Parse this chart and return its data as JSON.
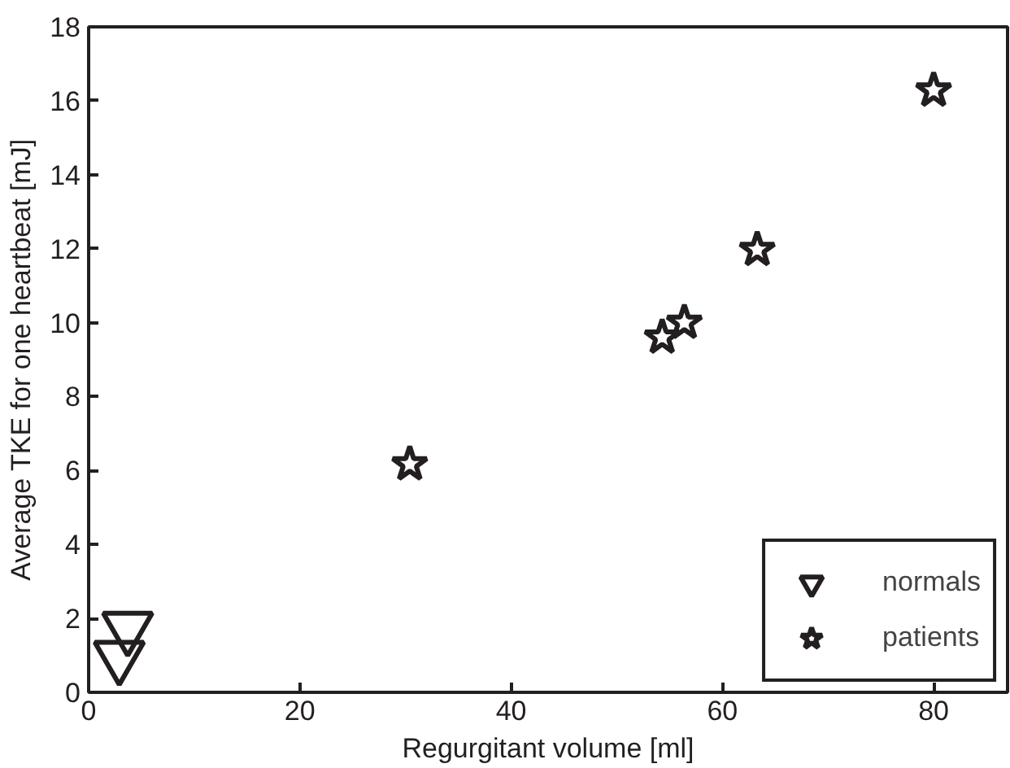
{
  "chart_data": {
    "type": "scatter",
    "xlabel": "Regurgitant volume [ml]",
    "ylabel": "Average TKE for one heartbeat [mJ]",
    "xlim": [
      0,
      87
    ],
    "ylim": [
      0,
      18
    ],
    "xticks": [
      0,
      20,
      40,
      60,
      80
    ],
    "yticks": [
      0,
      2,
      4,
      6,
      8,
      10,
      12,
      14,
      16,
      18
    ],
    "grid": false,
    "legend": "bottom right",
    "series": [
      {
        "name": "normals",
        "color": "#231f20",
        "marker": "triangle",
        "x": [
          2.9,
          3.7
        ],
        "values": [
          0.97,
          1.76
        ]
      },
      {
        "name": "patients",
        "color": "#231f20",
        "marker": "star",
        "x": [
          30.4,
          54.3,
          56.4,
          63.3,
          80.0
        ],
        "values": [
          6.17,
          9.6,
          10.0,
          11.97,
          16.28
        ]
      }
    ]
  }
}
